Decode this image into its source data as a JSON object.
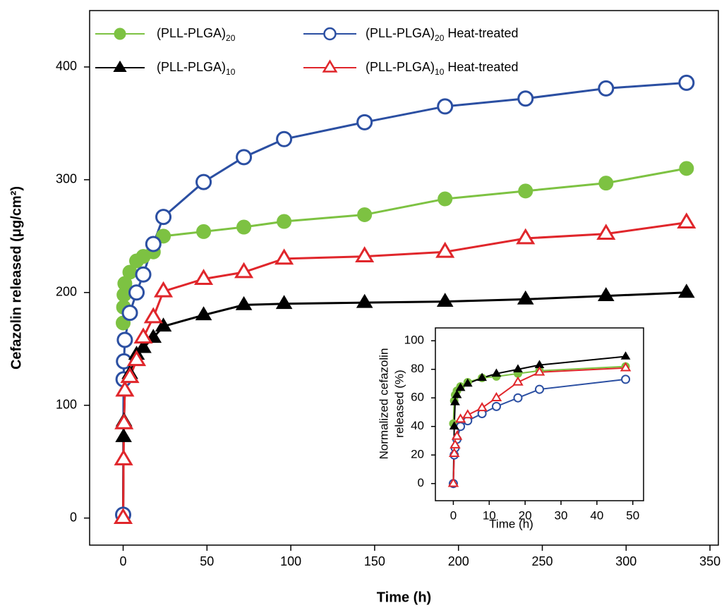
{
  "chart_data": [
    {
      "type": "line",
      "xlabel": "Time (h)",
      "ylabel": "Cefazolin released (μg/cm²)",
      "xlim": [
        -20,
        355
      ],
      "ylim": [
        -24,
        450
      ],
      "xticks": [
        0,
        50,
        100,
        150,
        200,
        250,
        300,
        350
      ],
      "yticks": [
        0,
        100,
        200,
        300,
        400
      ],
      "legend": "upper left",
      "x": [
        0,
        0.25,
        0.5,
        1,
        4,
        8,
        12,
        18,
        24,
        48,
        72,
        96,
        144,
        192,
        240,
        288,
        336
      ],
      "series": [
        {
          "name": "(PLL-PLGA)",
          "name_sub": "20",
          "name_suffix": "",
          "color": "#7dc242",
          "marker": "circle",
          "fill": "filled",
          "values": [
            173,
            187,
            198,
            208,
            218,
            228,
            232,
            236,
            250,
            254,
            258,
            263,
            269,
            283,
            290,
            297,
            310
          ]
        },
        {
          "name": "(PLL-PLGA)",
          "name_sub": "20",
          "name_suffix": " Heat-treated",
          "color": "#2b4fa2",
          "marker": "circle",
          "fill": "open",
          "values": [
            3,
            123,
            139,
            158,
            182,
            200,
            216,
            243,
            267,
            298,
            320,
            336,
            351,
            365,
            372,
            381,
            386
          ]
        },
        {
          "name": "(PLL-PLGA)",
          "name_sub": "10",
          "name_suffix": "",
          "color": "#000000",
          "marker": "triangle",
          "fill": "filled",
          "values": [
            0,
            72,
            86,
            113,
            128,
            145,
            151,
            160,
            170,
            180,
            189,
            190,
            191,
            192,
            194,
            197,
            200
          ]
        },
        {
          "name": "(PLL-PLGA)",
          "name_sub": "10",
          "name_suffix": " Heat-treated",
          "color": "#e0262b",
          "marker": "triangle",
          "fill": "open",
          "values": [
            0,
            52,
            84,
            113,
            125,
            140,
            160,
            178,
            201,
            212,
            218,
            230,
            232,
            236,
            248,
            252,
            262
          ]
        }
      ]
    },
    {
      "type": "line",
      "xlabel": "Time (h)",
      "ylabel_lines": [
        "Normalized cefazolin",
        "released (%)"
      ],
      "xlim": [
        -5,
        53
      ],
      "ylim": [
        -12,
        109
      ],
      "xticks": [
        0,
        10,
        20,
        30,
        40,
        50
      ],
      "yticks": [
        0,
        20,
        40,
        60,
        80,
        100
      ],
      "x": [
        0,
        0.25,
        0.5,
        1,
        2,
        4,
        8,
        12,
        18,
        24,
        48
      ],
      "series": [
        {
          "color": "#7dc242",
          "marker": "circle",
          "fill": "filled",
          "values": [
            42,
            58,
            62,
            65,
            68,
            71,
            74,
            75,
            77,
            79,
            82
          ]
        },
        {
          "color": "#2b4fa2",
          "marker": "circle",
          "fill": "open",
          "values": [
            0,
            20,
            25,
            31,
            40,
            44,
            49,
            54,
            60,
            66,
            73
          ]
        },
        {
          "color": "#000000",
          "marker": "triangle",
          "fill": "filled",
          "values": [
            0,
            40,
            57,
            62,
            67,
            70,
            74,
            77,
            80,
            83,
            89
          ]
        },
        {
          "color": "#e0262b",
          "marker": "triangle",
          "fill": "open",
          "values": [
            0,
            21,
            27,
            33,
            45,
            48,
            53,
            60,
            71,
            78,
            81
          ]
        }
      ]
    }
  ]
}
